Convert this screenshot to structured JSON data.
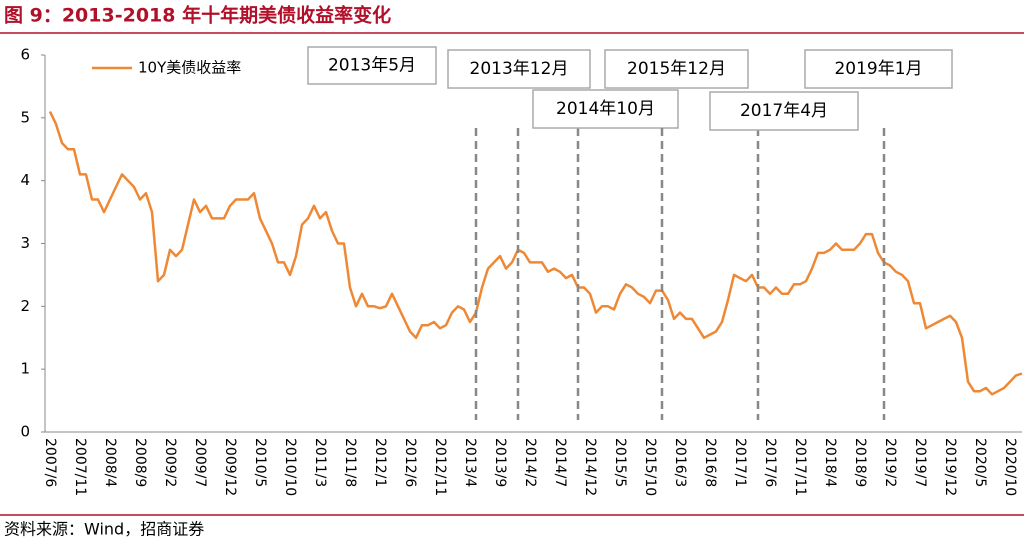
{
  "chart_data": {
    "type": "line",
    "title": "图 9：2013-2018 年十年期美债收益率变化",
    "source": "资料来源：Wind，招商证券",
    "categories": [
      "2007/6",
      null,
      null,
      null,
      null,
      "2007/11",
      null,
      null,
      null,
      null,
      "2008/4",
      null,
      null,
      null,
      null,
      "2008/9",
      null,
      null,
      null,
      null,
      "2009/2",
      null,
      null,
      null,
      null,
      "2009/7",
      null,
      null,
      null,
      null,
      "2009/12",
      null,
      null,
      null,
      null,
      "2010/5",
      null,
      null,
      null,
      null,
      "2010/10",
      null,
      null,
      null,
      null,
      "2011/3",
      null,
      null,
      null,
      null,
      "2011/8",
      null,
      null,
      null,
      null,
      "2012/1",
      null,
      null,
      null,
      null,
      "2012/6",
      null,
      null,
      null,
      null,
      "2012/11",
      null,
      null,
      null,
      null,
      "2013/4",
      null,
      null,
      null,
      null,
      "2013/9",
      null,
      null,
      null,
      null,
      "2014/2",
      null,
      null,
      null,
      null,
      "2014/7",
      null,
      null,
      null,
      null,
      "2014/12",
      null,
      null,
      null,
      null,
      "2015/5",
      null,
      null,
      null,
      null,
      "2015/10",
      null,
      null,
      null,
      null,
      "2016/3",
      null,
      null,
      null,
      null,
      "2016/8",
      null,
      null,
      null,
      null,
      "2017/1",
      null,
      null,
      null,
      null,
      "2017/6",
      null,
      null,
      null,
      null,
      "2017/11",
      null,
      null,
      null,
      null,
      "2018/4",
      null,
      null,
      null,
      null,
      "2018/9",
      null,
      null,
      null,
      null,
      "2019/2",
      null,
      null,
      null,
      null,
      "2019/7",
      null,
      null,
      null,
      null,
      "2019/12",
      null,
      null,
      null,
      null,
      "2020/5",
      null,
      null,
      null,
      null,
      "2020/10",
      null,
      null
    ],
    "series": [
      {
        "name": "10Y美债收益率",
        "color": "#ef8834",
        "values": [
          5.1,
          4.9,
          4.6,
          4.5,
          4.5,
          4.1,
          4.1,
          3.7,
          3.7,
          3.5,
          3.7,
          3.9,
          4.1,
          4.0,
          3.9,
          3.7,
          3.8,
          3.5,
          2.4,
          2.5,
          2.9,
          2.8,
          2.9,
          3.3,
          3.7,
          3.5,
          3.6,
          3.4,
          3.4,
          3.4,
          3.6,
          3.7,
          3.7,
          3.7,
          3.8,
          3.4,
          3.2,
          3.0,
          2.7,
          2.7,
          2.5,
          2.8,
          3.3,
          3.4,
          3.6,
          3.4,
          3.5,
          3.2,
          3.0,
          3.0,
          2.3,
          2.0,
          2.2,
          2.0,
          2.0,
          1.97,
          2.0,
          2.2,
          2.0,
          1.8,
          1.6,
          1.5,
          1.7,
          1.7,
          1.75,
          1.65,
          1.7,
          1.9,
          2.0,
          1.95,
          1.75,
          1.9,
          2.3,
          2.6,
          2.7,
          2.8,
          2.6,
          2.7,
          2.9,
          2.85,
          2.7,
          2.7,
          2.7,
          2.55,
          2.6,
          2.55,
          2.45,
          2.5,
          2.3,
          2.3,
          2.2,
          1.9,
          2.0,
          2.0,
          1.95,
          2.2,
          2.35,
          2.3,
          2.2,
          2.15,
          2.05,
          2.25,
          2.25,
          2.1,
          1.8,
          1.9,
          1.8,
          1.8,
          1.65,
          1.5,
          1.55,
          1.6,
          1.75,
          2.1,
          2.5,
          2.45,
          2.4,
          2.5,
          2.3,
          2.3,
          2.2,
          2.3,
          2.2,
          2.2,
          2.35,
          2.35,
          2.4,
          2.6,
          2.85,
          2.85,
          2.9,
          3.0,
          2.9,
          2.9,
          2.9,
          3.0,
          3.15,
          3.15,
          2.85,
          2.7,
          2.65,
          2.55,
          2.5,
          2.4,
          2.05,
          2.05,
          1.65,
          1.7,
          1.75,
          1.8,
          1.85,
          1.75,
          1.5,
          0.8,
          0.65,
          0.65,
          0.7,
          0.6,
          0.65,
          0.7,
          0.8,
          0.9,
          0.93
        ]
      }
    ],
    "ylim": [
      0,
      6
    ],
    "yticks": [
      0,
      1,
      2,
      3,
      4,
      5,
      6
    ],
    "annotations": [
      "2013年5月",
      "2013年12月",
      "2014年10月",
      "2015年12月",
      "2017年4月",
      "2019年1月"
    ],
    "legend": "top-left"
  }
}
